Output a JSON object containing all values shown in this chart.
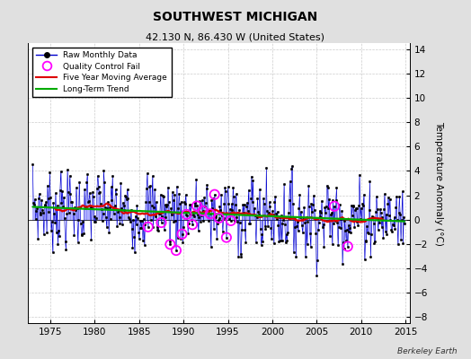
{
  "title": "SOUTHWEST MICHIGAN",
  "subtitle": "42.130 N, 86.430 W (United States)",
  "ylabel": "Temperature Anomaly (°C)",
  "attribution": "Berkeley Earth",
  "xlim": [
    1972.5,
    2015.5
  ],
  "ylim": [
    -8.5,
    14.5
  ],
  "yticks": [
    -8,
    -6,
    -4,
    -2,
    0,
    2,
    4,
    6,
    8,
    10,
    12,
    14
  ],
  "xticks": [
    1975,
    1980,
    1985,
    1990,
    1995,
    2000,
    2005,
    2010,
    2015
  ],
  "background_color": "#e0e0e0",
  "plot_bg_color": "#ffffff",
  "line_color": "#0000cc",
  "fill_color": "#8888ff",
  "ma_color": "#dd0000",
  "trend_color": "#00aa00",
  "qc_color": "#ff00ff",
  "dot_color": "#000000",
  "seed": 7
}
